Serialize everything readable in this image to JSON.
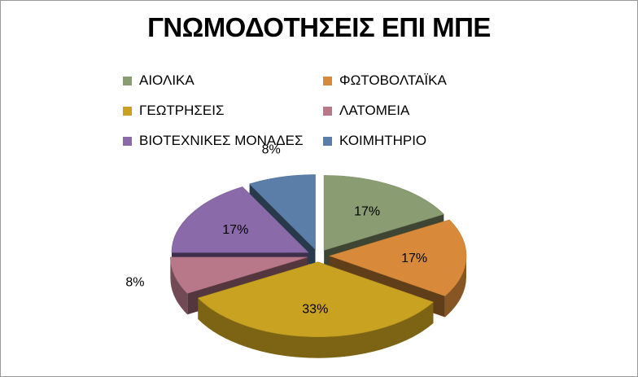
{
  "chart_data": {
    "type": "pie",
    "title": "ΓΝΩΜΟΔΟΤΗΣΕΙΣ ΕΠΙ ΜΠΕ",
    "legend_position": "top",
    "slices": [
      {
        "label": "ΑΙΟΛΙΚΑ",
        "value": 17,
        "display": "17%",
        "color": "#8a9c72"
      },
      {
        "label": "ΦΩΤΟΒΟΛΤΑΪΚΑ",
        "value": 17,
        "display": "17%",
        "color": "#d88a3a"
      },
      {
        "label": "ΓΕΩΤΡΗΣΕΙΣ",
        "value": 33,
        "display": "33%",
        "color": "#c8a220"
      },
      {
        "label": "ΛΑΤΟΜΕΙΑ",
        "value": 8,
        "display": "8%",
        "color": "#b8788a"
      },
      {
        "label": "ΒΙΟΤΕΧΝΙΚΕΣ ΜΟΝΑΔΕΣ",
        "value": 17,
        "display": "17%",
        "color": "#8a6aa8"
      },
      {
        "label": "ΚΟΙΜΗΤΗΡΙΟ",
        "value": 8,
        "display": "8%",
        "color": "#5a7ea8"
      }
    ]
  }
}
